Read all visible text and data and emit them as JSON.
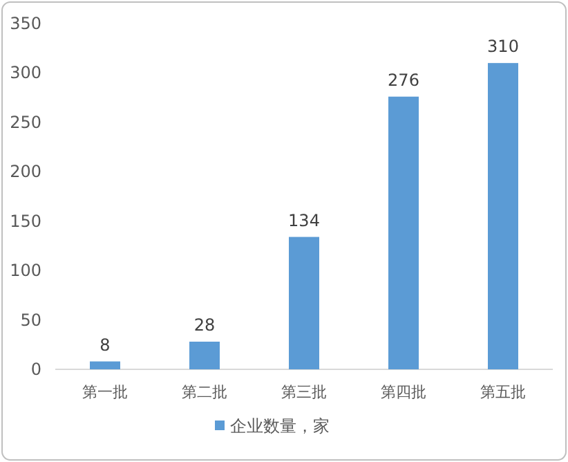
{
  "chart_data": {
    "type": "bar",
    "categories": [
      "第一批",
      "第二批",
      "第三批",
      "第四批",
      "第五批"
    ],
    "series": [
      {
        "name": "企业数量，家",
        "color": "#5b9bd5",
        "values": [
          8,
          28,
          134,
          276,
          310
        ]
      }
    ],
    "ylim": [
      0,
      350
    ],
    "yticks": [
      0,
      50,
      100,
      150,
      200,
      250,
      300,
      350
    ],
    "data_labels": true,
    "legend": "bottom"
  }
}
